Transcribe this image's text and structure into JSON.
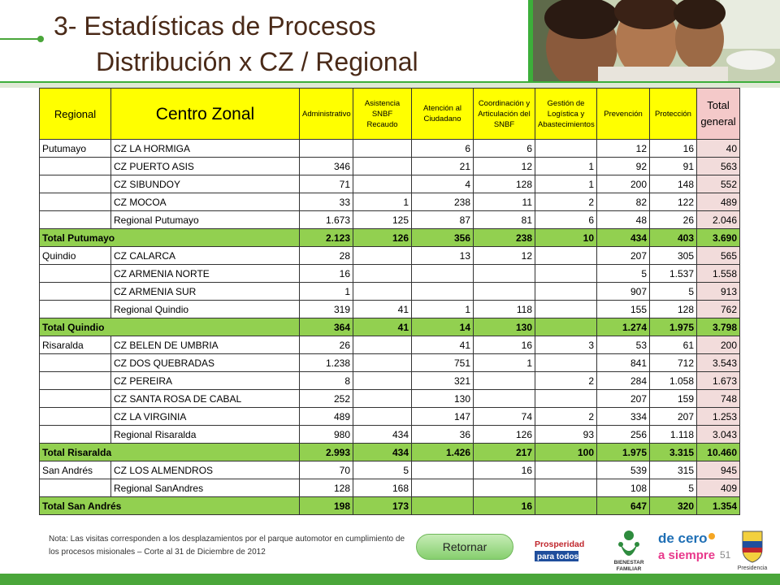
{
  "header": {
    "title_line1": "3- Estadísticas de Procesos",
    "title_line2": "Distribución  x CZ / Regional"
  },
  "table": {
    "columns": [
      "Regional",
      "Centro Zonal",
      "Administrativo",
      "Asistencia SNBF Recaudo",
      "Atención al Ciudadano",
      "Coordinación y Articulación del SNBF",
      "Gestión de Logística y Abastecimientos",
      "Prevención",
      "Protección",
      "Total general"
    ],
    "rows": [
      {
        "type": "data",
        "regional": "Putumayo",
        "cz": "CZ   LA HORMIGA",
        "v": [
          "",
          "",
          "6",
          "6",
          "",
          "12",
          "16",
          "40"
        ]
      },
      {
        "type": "data",
        "regional": "",
        "cz": "CZ   PUERTO ASIS",
        "v": [
          "346",
          "",
          "21",
          "12",
          "1",
          "92",
          "91",
          "563"
        ]
      },
      {
        "type": "data",
        "regional": "",
        "cz": "CZ   SIBUNDOY",
        "v": [
          "71",
          "",
          "4",
          "128",
          "1",
          "200",
          "148",
          "552"
        ]
      },
      {
        "type": "data",
        "regional": "",
        "cz": "CZ MOCOA",
        "v": [
          "33",
          "1",
          "238",
          "11",
          "2",
          "82",
          "122",
          "489"
        ]
      },
      {
        "type": "data",
        "regional": "",
        "cz": "Regional Putumayo",
        "v": [
          "1.673",
          "125",
          "87",
          "81",
          "6",
          "48",
          "26",
          "2.046"
        ]
      },
      {
        "type": "total",
        "label": "Total Putumayo",
        "v": [
          "2.123",
          "126",
          "356",
          "238",
          "10",
          "434",
          "403",
          "3.690"
        ]
      },
      {
        "type": "data",
        "regional": "Quindio",
        "cz": "CZ   CALARCA",
        "v": [
          "28",
          "",
          "13",
          "12",
          "",
          "207",
          "305",
          "565"
        ]
      },
      {
        "type": "data",
        "regional": "",
        "cz": "CZ ARMENIA NORTE",
        "v": [
          "16",
          "",
          "",
          "",
          "",
          "5",
          "1.537",
          "1.558"
        ]
      },
      {
        "type": "data",
        "regional": "",
        "cz": "CZ ARMENIA SUR",
        "v": [
          "1",
          "",
          "",
          "",
          "",
          "907",
          "5",
          "913"
        ]
      },
      {
        "type": "data",
        "regional": "",
        "cz": "Regional Quindio",
        "v": [
          "319",
          "41",
          "1",
          "118",
          "",
          "155",
          "128",
          "762"
        ]
      },
      {
        "type": "total",
        "label": "Total Quindio",
        "v": [
          "364",
          "41",
          "14",
          "130",
          "",
          "1.274",
          "1.975",
          "3.798"
        ]
      },
      {
        "type": "data",
        "regional": "Risaralda",
        "cz": "CZ   BELEN DE UMBRIA",
        "v": [
          "26",
          "",
          "41",
          "16",
          "3",
          "53",
          "61",
          "200"
        ]
      },
      {
        "type": "data",
        "regional": "",
        "cz": "CZ   DOS QUEBRADAS",
        "v": [
          "1.238",
          "",
          "751",
          "1",
          "",
          "841",
          "712",
          "3.543"
        ]
      },
      {
        "type": "data",
        "regional": "",
        "cz": "CZ   PEREIRA",
        "v": [
          "8",
          "",
          "321",
          "",
          "2",
          "284",
          "1.058",
          "1.673"
        ]
      },
      {
        "type": "data",
        "regional": "",
        "cz": "CZ   SANTA ROSA DE CABAL",
        "v": [
          "252",
          "",
          "130",
          "",
          "",
          "207",
          "159",
          "748"
        ]
      },
      {
        "type": "data",
        "regional": "",
        "cz": "CZ LA VIRGINIA",
        "v": [
          "489",
          "",
          "147",
          "74",
          "2",
          "334",
          "207",
          "1.253"
        ]
      },
      {
        "type": "data",
        "regional": "",
        "cz": "Regional Risaralda",
        "v": [
          "980",
          "434",
          "36",
          "126",
          "93",
          "256",
          "1.118",
          "3.043"
        ]
      },
      {
        "type": "total",
        "label": "Total Risaralda",
        "v": [
          "2.993",
          "434",
          "1.426",
          "217",
          "100",
          "1.975",
          "3.315",
          "10.460"
        ]
      },
      {
        "type": "data",
        "regional": "San Andrés",
        "cz": "CZ LOS ALMENDROS",
        "v": [
          "70",
          "5",
          "",
          "16",
          "",
          "539",
          "315",
          "945"
        ]
      },
      {
        "type": "data",
        "regional": "",
        "cz": "Regional SanAndres",
        "v": [
          "128",
          "168",
          "",
          "",
          "",
          "108",
          "5",
          "409"
        ]
      },
      {
        "type": "total",
        "label": "Total San Andrés",
        "v": [
          "198",
          "173",
          "",
          "16",
          "",
          "647",
          "320",
          "1.354"
        ]
      }
    ]
  },
  "footer": {
    "note": "Nota: Las visitas corresponden a los desplazamientos por el parque automotor en cumplimiento de los procesos misionales – Corte al 31 de Diciembre de 2012",
    "return_button": "Retornar",
    "page_number": "51",
    "logo_prosperidad_line1": "Prosperidad",
    "logo_prosperidad_line2": "para todos",
    "logo_bienestar_line1": "BIENESTAR",
    "logo_bienestar_line2": "FAMILIAR",
    "logo_decero_line1": "de cero",
    "logo_decero_line2": "a siempre",
    "logo_presidencia": "Presidencia"
  },
  "colors": {
    "header_band": "#3cae3a",
    "header_yellow": "#ffff00",
    "total_row_green": "#92d050",
    "total_column_pink": "#f2dcdb",
    "title_text": "#4a2a18"
  }
}
